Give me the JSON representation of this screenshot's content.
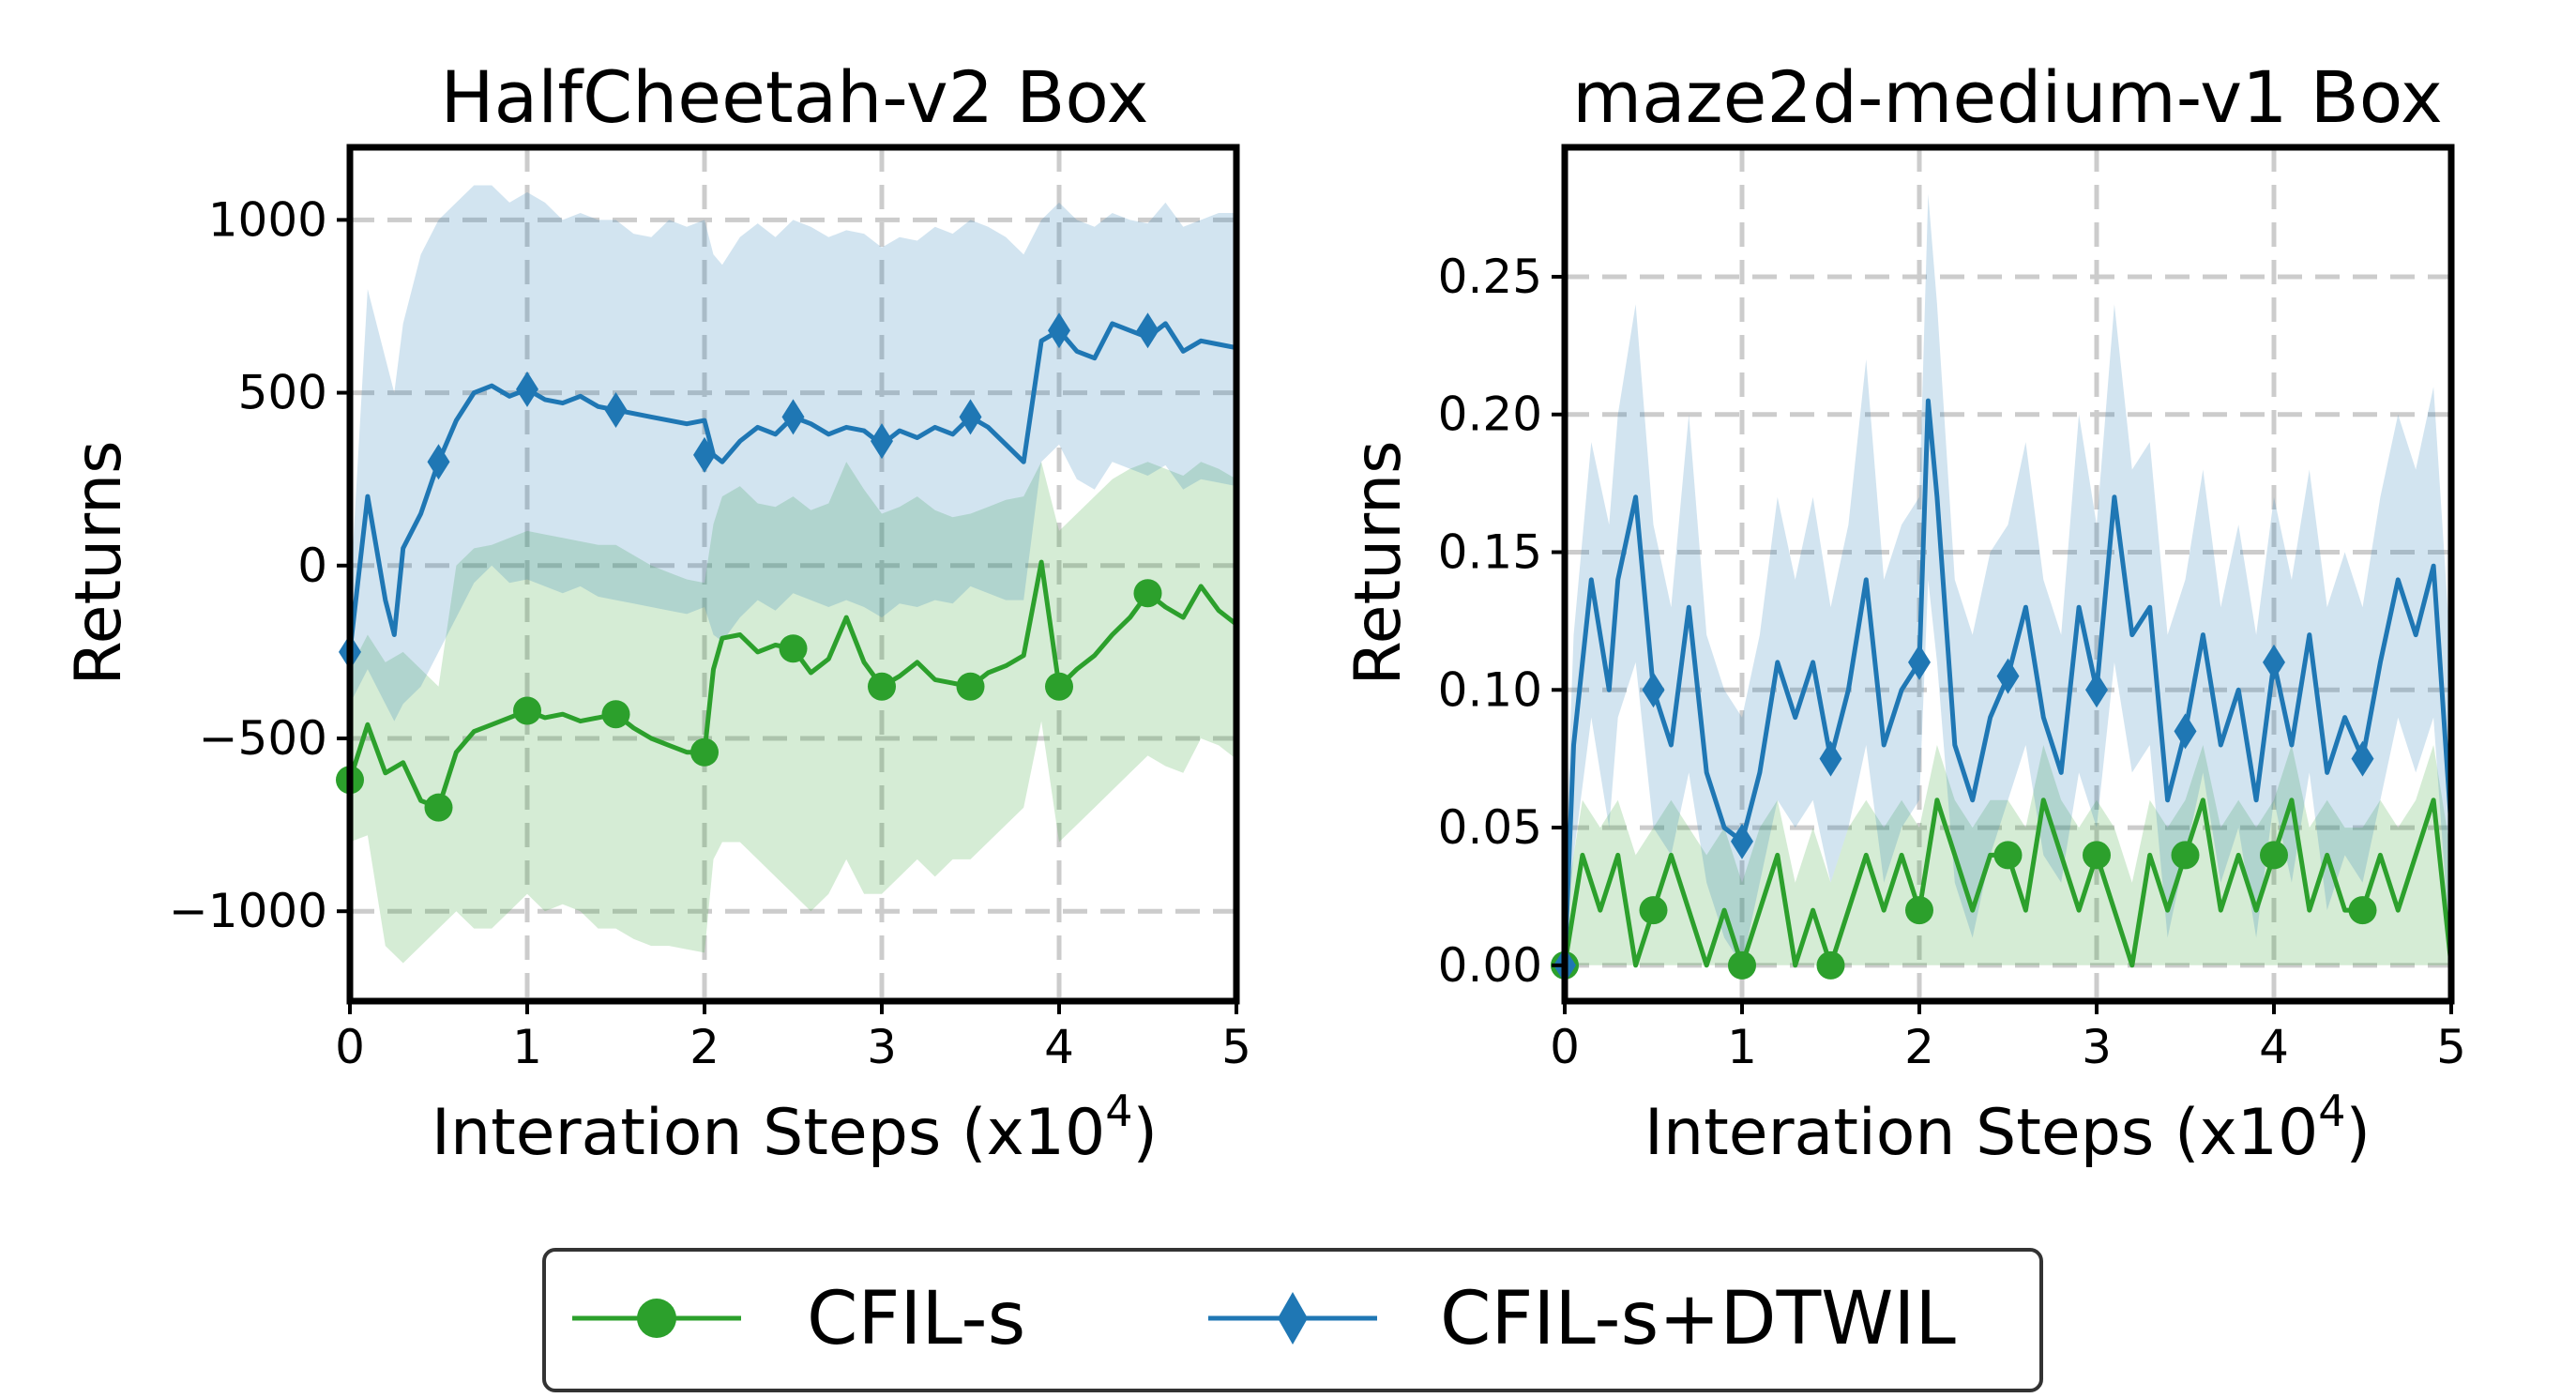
{
  "figure_title": "",
  "chart_data": [
    {
      "type": "line",
      "title": "HalfCheetah-v2 Box",
      "xlabel": "Interation Steps (x10",
      "xlabel_exp": "4",
      "xlabel_close": ")",
      "ylabel": "Returns",
      "xlim": [
        0,
        5
      ],
      "ylim": [
        -1260,
        1210
      ],
      "xticks": [
        0,
        1,
        2,
        3,
        4,
        5
      ],
      "xtick_labels": [
        "0",
        "1",
        "2",
        "3",
        "4",
        "5"
      ],
      "yticks": [
        -1000,
        -500,
        0,
        500,
        1000
      ],
      "ytick_labels": [
        "−1000",
        "−500",
        "0",
        "500",
        "1000"
      ],
      "grid": true,
      "series": [
        {
          "name": "CFIL-s",
          "color": "#2ca02c",
          "marker": "circle",
          "x": [
            0,
            0.1,
            0.2,
            0.3,
            0.4,
            0.5,
            0.6,
            0.7,
            0.8,
            0.9,
            1.0,
            1.1,
            1.2,
            1.3,
            1.4,
            1.5,
            1.6,
            1.7,
            1.8,
            1.9,
            2.0,
            2.05,
            2.1,
            2.2,
            2.3,
            2.4,
            2.5,
            2.6,
            2.7,
            2.8,
            2.9,
            3.0,
            3.1,
            3.2,
            3.3,
            3.4,
            3.5,
            3.6,
            3.7,
            3.8,
            3.9,
            4.0,
            4.1,
            4.2,
            4.3,
            4.4,
            4.5,
            4.6,
            4.7,
            4.8,
            4.9,
            5.0
          ],
          "y": [
            -620,
            -460,
            -600,
            -570,
            -680,
            -700,
            -540,
            -480,
            -460,
            -440,
            -420,
            -440,
            -430,
            -450,
            -440,
            -430,
            -470,
            -500,
            -520,
            -540,
            -540,
            -300,
            -210,
            -200,
            -250,
            -230,
            -240,
            -310,
            -270,
            -150,
            -280,
            -350,
            -320,
            -280,
            -330,
            -340,
            -350,
            -310,
            -290,
            -260,
            10,
            -350,
            -300,
            -260,
            -200,
            -150,
            -80,
            -120,
            -150,
            -60,
            -130,
            -170
          ],
          "upper": [
            -300,
            -200,
            -280,
            -250,
            -300,
            -350,
            0,
            50,
            60,
            80,
            100,
            90,
            80,
            70,
            60,
            60,
            30,
            0,
            -20,
            -40,
            -50,
            120,
            200,
            230,
            180,
            170,
            200,
            160,
            180,
            300,
            220,
            150,
            170,
            200,
            160,
            140,
            150,
            170,
            190,
            200,
            300,
            100,
            150,
            200,
            250,
            280,
            300,
            280,
            260,
            300,
            280,
            250
          ],
          "lower": [
            -800,
            -780,
            -1100,
            -1150,
            -1100,
            -1050,
            -1000,
            -1050,
            -1050,
            -1000,
            -950,
            -1000,
            -980,
            -1000,
            -1050,
            -1050,
            -1080,
            -1100,
            -1100,
            -1110,
            -1120,
            -850,
            -800,
            -800,
            -850,
            -900,
            -950,
            -1000,
            -950,
            -850,
            -950,
            -950,
            -900,
            -850,
            -900,
            -850,
            -850,
            -800,
            -750,
            -700,
            -450,
            -800,
            -750,
            -700,
            -650,
            -600,
            -550,
            -580,
            -600,
            -500,
            -520,
            -560
          ],
          "markers_x": [
            0,
            0.5,
            1.0,
            1.5,
            2.0,
            2.5,
            3.0,
            3.5,
            4.0,
            4.5
          ],
          "markers_y": [
            -620,
            -700,
            -420,
            -430,
            -540,
            -240,
            -350,
            -350,
            -350,
            -80
          ]
        },
        {
          "name": "CFIL-s+DTWIL",
          "color": "#1f77b4",
          "marker": "diamond",
          "x": [
            0,
            0.1,
            0.2,
            0.25,
            0.3,
            0.4,
            0.5,
            0.6,
            0.7,
            0.8,
            0.9,
            1.0,
            1.1,
            1.2,
            1.3,
            1.4,
            1.5,
            1.6,
            1.7,
            1.8,
            1.9,
            2.0,
            2.05,
            2.1,
            2.2,
            2.3,
            2.4,
            2.5,
            2.6,
            2.7,
            2.8,
            2.9,
            3.0,
            3.1,
            3.2,
            3.3,
            3.4,
            3.5,
            3.6,
            3.7,
            3.8,
            3.9,
            4.0,
            4.1,
            4.2,
            4.3,
            4.4,
            4.5,
            4.6,
            4.7,
            4.8,
            4.9,
            5.0
          ],
          "y": [
            -250,
            200,
            -100,
            -200,
            50,
            150,
            300,
            420,
            500,
            520,
            490,
            510,
            480,
            470,
            490,
            460,
            450,
            440,
            430,
            420,
            410,
            420,
            320,
            300,
            360,
            400,
            380,
            430,
            410,
            380,
            400,
            390,
            350,
            390,
            370,
            400,
            380,
            430,
            400,
            350,
            300,
            650,
            680,
            620,
            600,
            700,
            680,
            660,
            700,
            620,
            650,
            640,
            630
          ],
          "upper": [
            -100,
            800,
            600,
            500,
            700,
            900,
            1000,
            1050,
            1100,
            1100,
            1050,
            1080,
            1050,
            1000,
            1020,
            1000,
            1000,
            960,
            950,
            1000,
            980,
            1000,
            900,
            870,
            950,
            990,
            950,
            1000,
            980,
            950,
            970,
            960,
            920,
            950,
            940,
            980,
            960,
            1000,
            980,
            950,
            900,
            1000,
            1050,
            1000,
            980,
            1020,
            1000,
            990,
            1050,
            980,
            1000,
            1020,
            1020
          ],
          "lower": [
            -400,
            -300,
            -400,
            -450,
            -400,
            -350,
            -250,
            -150,
            -50,
            0,
            -50,
            -40,
            -60,
            -80,
            -60,
            -90,
            -100,
            -110,
            -120,
            -130,
            -140,
            -120,
            -200,
            -220,
            -150,
            -100,
            -130,
            -80,
            -100,
            -120,
            -100,
            -120,
            -150,
            -110,
            -120,
            -100,
            -110,
            -60,
            -80,
            -100,
            -100,
            300,
            350,
            250,
            220,
            300,
            280,
            260,
            290,
            220,
            250,
            240,
            230
          ],
          "markers_x": [
            0,
            0.5,
            1.0,
            1.5,
            2.0,
            2.5,
            3.0,
            3.5,
            4.0,
            4.5
          ],
          "markers_y": [
            -250,
            300,
            510,
            450,
            320,
            430,
            360,
            430,
            680,
            680
          ]
        }
      ]
    },
    {
      "type": "line",
      "title": "maze2d-medium-v1 Box",
      "xlabel": "Interation Steps (x10",
      "xlabel_exp": "4",
      "xlabel_close": ")",
      "ylabel": "Returns",
      "xlim": [
        0,
        5
      ],
      "ylim": [
        -0.013,
        0.297
      ],
      "xticks": [
        0,
        1,
        2,
        3,
        4,
        5
      ],
      "xtick_labels": [
        "0",
        "1",
        "2",
        "3",
        "4",
        "5"
      ],
      "yticks": [
        0.0,
        0.05,
        0.1,
        0.15,
        0.2,
        0.25
      ],
      "ytick_labels": [
        "0.00",
        "0.05",
        "0.10",
        "0.15",
        "0.20",
        "0.25"
      ],
      "grid": true,
      "series": [
        {
          "name": "CFIL-s",
          "color": "#2ca02c",
          "marker": "circle",
          "x": [
            0,
            0.1,
            0.2,
            0.3,
            0.4,
            0.5,
            0.6,
            0.7,
            0.8,
            0.9,
            1.0,
            1.1,
            1.2,
            1.3,
            1.4,
            1.5,
            1.6,
            1.7,
            1.8,
            1.9,
            2.0,
            2.1,
            2.2,
            2.3,
            2.4,
            2.5,
            2.6,
            2.7,
            2.8,
            2.9,
            3.0,
            3.1,
            3.2,
            3.3,
            3.4,
            3.5,
            3.6,
            3.7,
            3.8,
            3.9,
            4.0,
            4.1,
            4.2,
            4.3,
            4.4,
            4.5,
            4.6,
            4.7,
            4.8,
            4.9,
            5.0
          ],
          "y": [
            0,
            0.04,
            0.02,
            0.04,
            0,
            0.02,
            0.04,
            0.02,
            0,
            0.02,
            0,
            0.02,
            0.04,
            0,
            0.02,
            0,
            0.02,
            0.04,
            0.02,
            0.04,
            0.02,
            0.06,
            0.04,
            0.02,
            0.04,
            0.04,
            0.02,
            0.06,
            0.04,
            0.02,
            0.04,
            0.02,
            0,
            0.04,
            0.02,
            0.04,
            0.06,
            0.02,
            0.04,
            0.02,
            0.04,
            0.06,
            0.02,
            0.04,
            0.02,
            0.02,
            0.04,
            0.02,
            0.04,
            0.06,
            0
          ],
          "upper": [
            0.02,
            0.06,
            0.05,
            0.06,
            0.04,
            0.05,
            0.06,
            0.05,
            0.04,
            0.05,
            0.03,
            0.05,
            0.06,
            0.03,
            0.05,
            0.03,
            0.05,
            0.06,
            0.05,
            0.06,
            0.05,
            0.08,
            0.06,
            0.05,
            0.06,
            0.06,
            0.05,
            0.08,
            0.06,
            0.05,
            0.06,
            0.05,
            0.03,
            0.06,
            0.05,
            0.06,
            0.08,
            0.05,
            0.06,
            0.05,
            0.06,
            0.08,
            0.05,
            0.06,
            0.05,
            0.05,
            0.06,
            0.05,
            0.06,
            0.08,
            0.04
          ],
          "lower": [
            0,
            0,
            0,
            0,
            0,
            0,
            0,
            0,
            0,
            0,
            0,
            0,
            0,
            0,
            0,
            0,
            0,
            0,
            0,
            0,
            0,
            0,
            0,
            0,
            0,
            0,
            0,
            0,
            0,
            0,
            0,
            0,
            0,
            0,
            0,
            0,
            0,
            0,
            0,
            0,
            0,
            0,
            0,
            0,
            0,
            0,
            0,
            0,
            0,
            0,
            0
          ],
          "markers_x": [
            0,
            0.5,
            1.0,
            1.5,
            2.0,
            2.5,
            3.0,
            3.5,
            4.0,
            4.5
          ],
          "markers_y": [
            0,
            0.02,
            0,
            0,
            0.02,
            0.04,
            0.04,
            0.04,
            0.04,
            0.02
          ]
        },
        {
          "name": "CFIL-s+DTWIL",
          "color": "#1f77b4",
          "marker": "diamond",
          "x": [
            0,
            0.05,
            0.15,
            0.25,
            0.3,
            0.4,
            0.5,
            0.6,
            0.7,
            0.8,
            0.9,
            1.0,
            1.1,
            1.2,
            1.3,
            1.4,
            1.5,
            1.6,
            1.7,
            1.8,
            1.9,
            2.0,
            2.05,
            2.1,
            2.2,
            2.3,
            2.4,
            2.5,
            2.6,
            2.7,
            2.8,
            2.9,
            3.0,
            3.1,
            3.2,
            3.3,
            3.4,
            3.5,
            3.6,
            3.7,
            3.8,
            3.9,
            4.0,
            4.1,
            4.2,
            4.3,
            4.4,
            4.5,
            4.6,
            4.7,
            4.8,
            4.9,
            5.0
          ],
          "y": [
            0.0,
            0.08,
            0.14,
            0.1,
            0.14,
            0.17,
            0.1,
            0.08,
            0.13,
            0.07,
            0.05,
            0.045,
            0.07,
            0.11,
            0.09,
            0.11,
            0.075,
            0.1,
            0.14,
            0.08,
            0.1,
            0.11,
            0.205,
            0.17,
            0.08,
            0.06,
            0.09,
            0.105,
            0.13,
            0.09,
            0.07,
            0.13,
            0.1,
            0.17,
            0.12,
            0.13,
            0.06,
            0.085,
            0.12,
            0.08,
            0.1,
            0.06,
            0.11,
            0.08,
            0.12,
            0.07,
            0.09,
            0.075,
            0.11,
            0.14,
            0.12,
            0.145,
            0.05
          ],
          "upper": [
            0.03,
            0.12,
            0.19,
            0.16,
            0.2,
            0.24,
            0.16,
            0.13,
            0.2,
            0.12,
            0.1,
            0.09,
            0.12,
            0.17,
            0.14,
            0.17,
            0.13,
            0.16,
            0.22,
            0.14,
            0.16,
            0.17,
            0.28,
            0.24,
            0.14,
            0.12,
            0.15,
            0.16,
            0.19,
            0.14,
            0.12,
            0.2,
            0.16,
            0.24,
            0.18,
            0.19,
            0.12,
            0.14,
            0.18,
            0.13,
            0.16,
            0.12,
            0.17,
            0.14,
            0.18,
            0.13,
            0.15,
            0.13,
            0.17,
            0.2,
            0.18,
            0.21,
            0.11
          ],
          "lower": [
            0.0,
            0.04,
            0.09,
            0.05,
            0.09,
            0.11,
            0.05,
            0.04,
            0.07,
            0.03,
            0.01,
            0.0,
            0.03,
            0.06,
            0.05,
            0.06,
            0.03,
            0.05,
            0.08,
            0.03,
            0.05,
            0.06,
            0.14,
            0.11,
            0.03,
            0.01,
            0.04,
            0.06,
            0.08,
            0.04,
            0.03,
            0.07,
            0.05,
            0.11,
            0.07,
            0.08,
            0.01,
            0.04,
            0.07,
            0.03,
            0.05,
            0.01,
            0.06,
            0.03,
            0.07,
            0.02,
            0.04,
            0.03,
            0.06,
            0.09,
            0.07,
            0.09,
            0.0
          ],
          "markers_x": [
            0,
            0.5,
            1.0,
            1.5,
            2.0,
            2.5,
            3.0,
            3.5,
            4.0,
            4.5
          ],
          "markers_y": [
            0.0,
            0.1,
            0.045,
            0.075,
            0.11,
            0.105,
            0.1,
            0.085,
            0.11,
            0.075
          ]
        }
      ]
    }
  ],
  "legend": {
    "items": [
      {
        "label": "CFIL-s",
        "color": "#2ca02c",
        "marker": "circle"
      },
      {
        "label": "CFIL-s+DTWIL",
        "color": "#1f77b4",
        "marker": "diamond"
      }
    ]
  }
}
